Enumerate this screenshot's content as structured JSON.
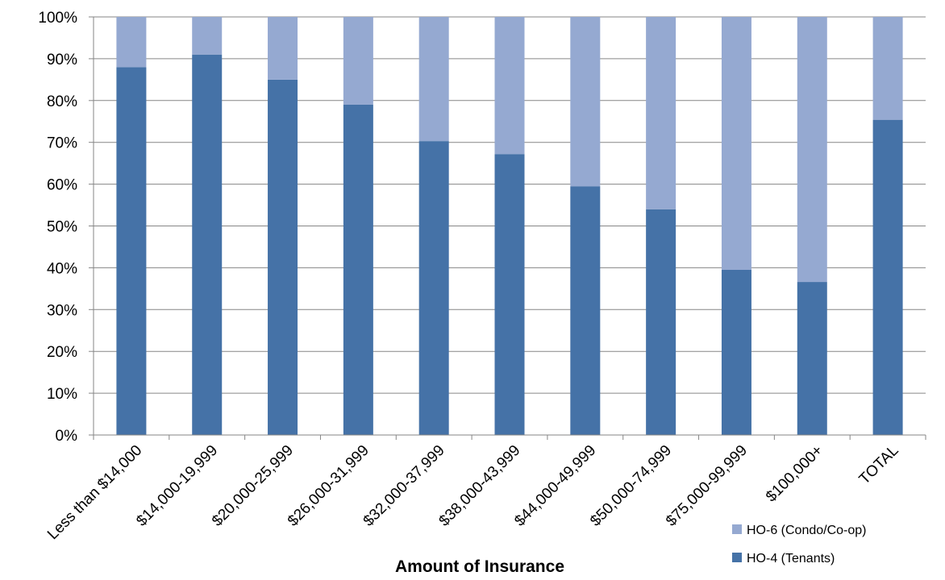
{
  "chart_data": {
    "type": "bar",
    "stacked": true,
    "xlabel": "Amount of Insurance",
    "ylabel": "",
    "ylim": [
      0,
      100
    ],
    "ytick_step": 10,
    "y_format": "percent",
    "grid": true,
    "legend_position": "bottom-right",
    "categories": [
      "Less than $14,000",
      "$14,000-19,999",
      "$20,000-25,999",
      "$26,000-31,999",
      "$32,000-37,999",
      "$38,000-43,999",
      "$44,000-49,999",
      "$50,000-74,999",
      "$75,000-99,999",
      "$100,000+",
      "TOTAL"
    ],
    "series": [
      {
        "name": "HO-4 (Tenants)",
        "color": "#4572A7",
        "values": [
          88,
          91,
          85,
          79,
          70.3,
          67.2,
          59.5,
          54,
          39.5,
          36.6,
          75.4
        ]
      },
      {
        "name": "HO-6 (Condo/Co-op)",
        "color": "#95A9D1",
        "values": [
          12,
          9,
          15,
          21,
          29.7,
          32.8,
          40.5,
          46,
          60.5,
          63.4,
          24.6
        ]
      }
    ]
  }
}
